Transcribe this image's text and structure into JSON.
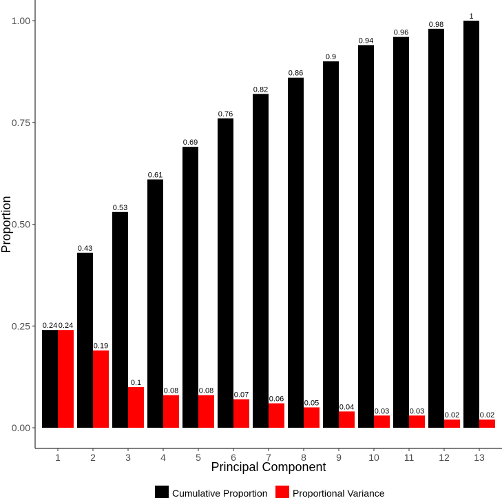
{
  "chart_data": {
    "type": "bar",
    "xlabel": "Principal Component",
    "ylabel": "Proportion",
    "categories": [
      "1",
      "2",
      "3",
      "4",
      "5",
      "6",
      "7",
      "8",
      "9",
      "10",
      "11",
      "12",
      "13"
    ],
    "ylim": [
      0,
      1.0
    ],
    "yticks": [
      "0.00",
      "0.25",
      "0.50",
      "0.75",
      "1.00"
    ],
    "grid": false,
    "legend_position": "bottom",
    "series": [
      {
        "name": "Cumulative Proportion",
        "color": "#000000",
        "values": [
          0.24,
          0.43,
          0.53,
          0.61,
          0.69,
          0.76,
          0.82,
          0.86,
          0.9,
          0.94,
          0.96,
          0.98,
          1
        ],
        "labels": [
          "0.24",
          "0.43",
          "0.53",
          "0.61",
          "0.69",
          "0.76",
          "0.82",
          "0.86",
          "0.9",
          "0.94",
          "0.96",
          "0.98",
          "1"
        ]
      },
      {
        "name": "Proportional Variance",
        "color": "#ff0000",
        "values": [
          0.24,
          0.19,
          0.1,
          0.08,
          0.08,
          0.07,
          0.06,
          0.05,
          0.04,
          0.03,
          0.03,
          0.02,
          0.02
        ],
        "labels": [
          "0.24",
          "0.19",
          "0.1",
          "0.08",
          "0.08",
          "0.07",
          "0.06",
          "0.05",
          "0.04",
          "0.03",
          "0.03",
          "0.02",
          "0.02"
        ]
      }
    ]
  }
}
